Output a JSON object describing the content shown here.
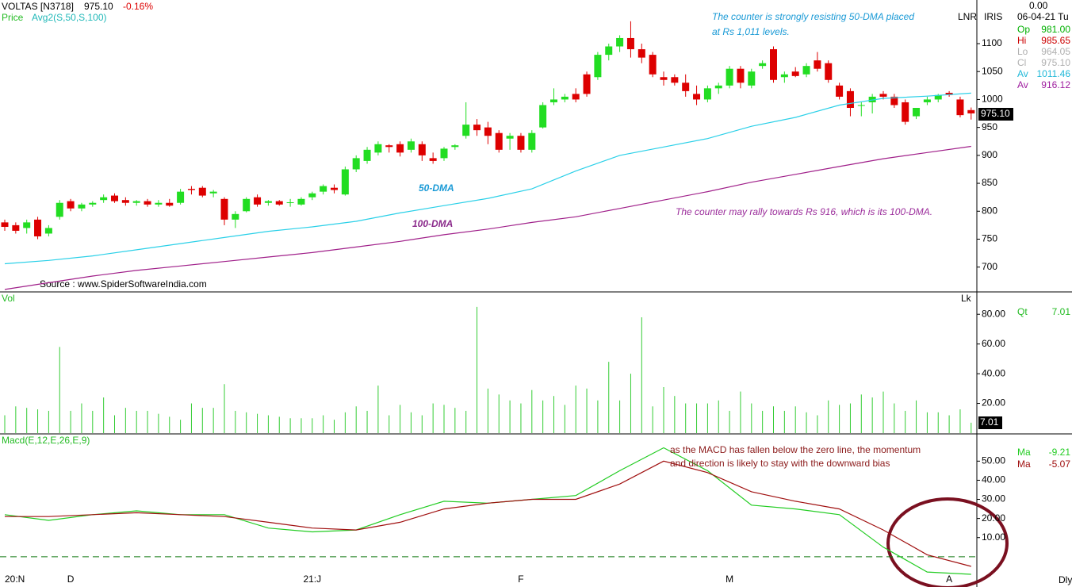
{
  "header": {
    "symbol": "VOLTAS [N3718]",
    "last": "975.10",
    "change": "-0.16%",
    "price_label": "Price",
    "study": "Avg2(S,50,S,100)",
    "source": "Source : www.SpiderSoftwareIndia.com",
    "lnr": "LNR",
    "iris": "IRIS",
    "date": "06-04-21 Tu",
    "top_value": "0.00",
    "periodicity": "Dly"
  },
  "info_panel": [
    {
      "label": "Op",
      "value": "981.00",
      "color": "#00b000"
    },
    {
      "label": "Hi",
      "value": "985.65",
      "color": "#cc0000"
    },
    {
      "label": "Lo",
      "value": "964.05",
      "color": "#b0b0b0"
    },
    {
      "label": "Cl",
      "value": "975.10",
      "color": "#b0b0b0"
    },
    {
      "label": "Av",
      "value": "1011.46",
      "color": "#20b8d8"
    },
    {
      "label": "Av",
      "value": "916.12",
      "color": "#a020a0"
    }
  ],
  "chart_data": [
    {
      "type": "candlestick",
      "ylim": [
        657,
        1171
      ],
      "yticks": [
        700,
        750,
        800,
        850,
        900,
        950,
        1000,
        1050,
        1100
      ],
      "up_color": "#22dd22",
      "down_color": "#dd0000",
      "categories": [
        null,
        "20:N",
        null,
        null,
        null,
        null,
        "D",
        null,
        null,
        null,
        null,
        null,
        null,
        null,
        null,
        null,
        null,
        null,
        null,
        null,
        null,
        null,
        null,
        null,
        null,
        null,
        null,
        null,
        "21:J",
        null,
        null,
        null,
        null,
        null,
        null,
        null,
        null,
        null,
        null,
        null,
        null,
        null,
        null,
        null,
        null,
        null,
        null,
        "F",
        null,
        null,
        null,
        null,
        null,
        null,
        null,
        null,
        null,
        null,
        null,
        null,
        null,
        null,
        null,
        null,
        null,
        null,
        "M",
        null,
        null,
        null,
        null,
        null,
        null,
        null,
        null,
        null,
        null,
        null,
        null,
        null,
        null,
        null,
        null,
        null,
        null,
        null,
        "A",
        null
      ],
      "ohlc": [
        [
          780,
          785,
          765,
          772
        ],
        [
          775,
          780,
          760,
          765
        ],
        [
          770,
          785,
          760,
          780
        ],
        [
          785,
          790,
          750,
          755
        ],
        [
          760,
          775,
          755,
          770
        ],
        [
          790,
          820,
          785,
          815
        ],
        [
          818,
          822,
          800,
          805
        ],
        [
          805,
          815,
          800,
          812
        ],
        [
          812,
          818,
          808,
          815
        ],
        [
          820,
          830,
          815,
          825
        ],
        [
          828,
          832,
          815,
          818
        ],
        [
          820,
          825,
          810,
          815
        ],
        [
          815,
          820,
          810,
          818
        ],
        [
          818,
          822,
          808,
          812
        ],
        [
          812,
          820,
          808,
          815
        ],
        [
          815,
          822,
          808,
          810
        ],
        [
          815,
          840,
          812,
          835
        ],
        [
          840,
          845,
          830,
          838
        ],
        [
          842,
          845,
          825,
          828
        ],
        [
          832,
          838,
          825,
          835
        ],
        [
          822,
          825,
          775,
          785
        ],
        [
          785,
          800,
          770,
          795
        ],
        [
          800,
          825,
          798,
          822
        ],
        [
          825,
          830,
          808,
          812
        ],
        [
          815,
          820,
          810,
          818
        ],
        [
          818,
          820,
          810,
          812
        ],
        [
          815,
          822,
          808,
          816
        ],
        [
          812,
          825,
          810,
          822
        ],
        [
          825,
          835,
          820,
          832
        ],
        [
          835,
          848,
          830,
          845
        ],
        [
          842,
          848,
          832,
          838
        ],
        [
          830,
          880,
          828,
          875
        ],
        [
          875,
          900,
          870,
          895
        ],
        [
          890,
          915,
          885,
          910
        ],
        [
          905,
          925,
          900,
          920
        ],
        [
          918,
          920,
          905,
          915
        ],
        [
          920,
          925,
          898,
          905
        ],
        [
          910,
          930,
          905,
          925
        ],
        [
          920,
          925,
          890,
          900
        ],
        [
          895,
          905,
          885,
          890
        ],
        [
          895,
          915,
          890,
          912
        ],
        [
          915,
          920,
          910,
          918
        ],
        [
          935,
          995,
          930,
          955
        ],
        [
          955,
          965,
          935,
          945
        ],
        [
          950,
          960,
          920,
          935
        ],
        [
          940,
          945,
          905,
          910
        ],
        [
          930,
          940,
          910,
          935
        ],
        [
          935,
          940,
          905,
          910
        ],
        [
          910,
          945,
          905,
          940
        ],
        [
          950,
          995,
          948,
          990
        ],
        [
          995,
          1020,
          990,
          1000
        ],
        [
          1000,
          1010,
          995,
          1005
        ],
        [
          1010,
          1020,
          995,
          1000
        ],
        [
          1045,
          1050,
          1005,
          1010
        ],
        [
          1040,
          1085,
          1035,
          1080
        ],
        [
          1080,
          1100,
          1070,
          1095
        ],
        [
          1095,
          1115,
          1085,
          1110
        ],
        [
          1110,
          1140,
          1075,
          1090
        ],
        [
          1090,
          1100,
          1065,
          1075
        ],
        [
          1080,
          1085,
          1040,
          1045
        ],
        [
          1040,
          1050,
          1025,
          1035
        ],
        [
          1040,
          1045,
          1025,
          1030
        ],
        [
          1030,
          1045,
          1005,
          1015
        ],
        [
          1010,
          1025,
          990,
          1000
        ],
        [
          1000,
          1025,
          995,
          1020
        ],
        [
          1020,
          1030,
          1010,
          1025
        ],
        [
          1025,
          1060,
          1020,
          1055
        ],
        [
          1055,
          1060,
          1020,
          1030
        ],
        [
          1025,
          1055,
          1020,
          1050
        ],
        [
          1060,
          1070,
          1055,
          1065
        ],
        [
          1090,
          1095,
          1030,
          1035
        ],
        [
          1040,
          1050,
          1030,
          1045
        ],
        [
          1050,
          1058,
          1040,
          1042
        ],
        [
          1045,
          1065,
          1040,
          1060
        ],
        [
          1070,
          1085,
          1050,
          1055
        ],
        [
          1065,
          1070,
          1030,
          1035
        ],
        [
          1025,
          1030,
          1000,
          1005
        ],
        [
          1015,
          1020,
          970,
          985
        ],
        [
          990,
          995,
          970,
          990
        ],
        [
          995,
          1010,
          975,
          1005
        ],
        [
          1010,
          1015,
          1000,
          1005
        ],
        [
          1005,
          1010,
          985,
          990
        ],
        [
          995,
          1000,
          955,
          960
        ],
        [
          970,
          985,
          965,
          985
        ],
        [
          995,
          1005,
          990,
          1000
        ],
        [
          1000,
          1010,
          995,
          1008
        ],
        [
          1012,
          1015,
          1005,
          1008
        ],
        [
          1000,
          1005,
          968,
          972
        ],
        [
          981,
          985.65,
          964.05,
          975.1
        ]
      ],
      "line_x": [
        0,
        4,
        8,
        12,
        16,
        20,
        24,
        28,
        32,
        36,
        40,
        44,
        48,
        52,
        56,
        60,
        64,
        68,
        72,
        76,
        80,
        84,
        88
      ],
      "lines": [
        {
          "name": "50-DMA",
          "color": "#2ad0e8",
          "label_color": "#1a9ad6",
          "values": [
            706,
            712,
            720,
            731,
            742,
            753,
            764,
            772,
            782,
            797,
            810,
            823,
            840,
            872,
            900,
            915,
            930,
            952,
            968,
            990,
            1002,
            1006,
            1011.46
          ]
        },
        {
          "name": "100-DMA",
          "color": "#a0208a",
          "label_color": "#8b2a8b",
          "values": [
            660,
            672,
            684,
            694,
            702,
            710,
            718,
            726,
            736,
            746,
            758,
            768,
            780,
            790,
            805,
            820,
            835,
            852,
            866,
            880,
            894,
            905,
            916.12
          ]
        }
      ],
      "annotations": [
        {
          "lines": [
            "The counter is strongly resisting 50-DMA placed",
            "at Rs 1,011 levels."
          ],
          "color": "#1a9ad6"
        },
        {
          "lines": [
            "The counter may rally towards Rs 916, which is its 100-DMA."
          ],
          "color": "#9b2d9b"
        }
      ]
    },
    {
      "type": "bar",
      "title": "Vol",
      "unit": "Lk",
      "color": "#33cc33",
      "ylim": [
        0,
        94
      ],
      "yticks": [
        {
          "value": 20,
          "label": "20.00"
        },
        {
          "value": 40,
          "label": "40.00"
        },
        {
          "value": 60,
          "label": "60.00"
        },
        {
          "value": 80,
          "label": "80.00"
        }
      ],
      "readout": {
        "label": "Qt",
        "value": "7.01"
      },
      "values": [
        12,
        18,
        17,
        16,
        15,
        58,
        15,
        20,
        15,
        24,
        12,
        17,
        15,
        15,
        13,
        11,
        9,
        20,
        17,
        17,
        33,
        15,
        14,
        13,
        12,
        11,
        10,
        10,
        10,
        12,
        9,
        14,
        18,
        15,
        32,
        12,
        19,
        14,
        12,
        20,
        19,
        17,
        15,
        85,
        30,
        26,
        22,
        20,
        29,
        22,
        25,
        19,
        32,
        30,
        22,
        48,
        22,
        40,
        78,
        18,
        31,
        25,
        20,
        20,
        20,
        22,
        15,
        28,
        20,
        15,
        18,
        15,
        18,
        14,
        12,
        22,
        19,
        20,
        26,
        24,
        28,
        20,
        15,
        22,
        14,
        14,
        12,
        16,
        7.01
      ]
    },
    {
      "type": "line",
      "title": "Macd(E,12,E,26,E,9)",
      "ylim": [
        -14.6,
        63
      ],
      "yticks": [
        {
          "value": 10,
          "label": "10.00"
        },
        {
          "value": 20,
          "label": "20.00"
        },
        {
          "value": 30,
          "label": "30.00"
        },
        {
          "value": 40,
          "label": "40.00"
        },
        {
          "value": 50,
          "label": "50.00"
        }
      ],
      "zero_line": true,
      "x": [
        0,
        4,
        8,
        12,
        16,
        20,
        24,
        28,
        32,
        36,
        40,
        44,
        48,
        52,
        56,
        60,
        64,
        68,
        72,
        76,
        80,
        84,
        88
      ],
      "series": [
        {
          "name": "Ma",
          "readout": "-9.21",
          "color": "#22cc22",
          "values": [
            22,
            19,
            22,
            24,
            22,
            22,
            15,
            13,
            14,
            22,
            29,
            28,
            30,
            32,
            45,
            57,
            45,
            27,
            25,
            22,
            5,
            -8,
            -9.21
          ]
        },
        {
          "name": "Ma",
          "readout": "-5.07",
          "color": "#a01010",
          "values": [
            21,
            21,
            22,
            23,
            22,
            21,
            18,
            15,
            14,
            18,
            25,
            28,
            30,
            30,
            38,
            50,
            44,
            34,
            29,
            25,
            14,
            1,
            -5.07
          ]
        }
      ],
      "annotation": {
        "lines": [
          "as the MACD has fallen below the zero line, the momentum",
          "and direction is likely to stay with the downward bias"
        ],
        "color": "#8b1a1a"
      }
    }
  ]
}
